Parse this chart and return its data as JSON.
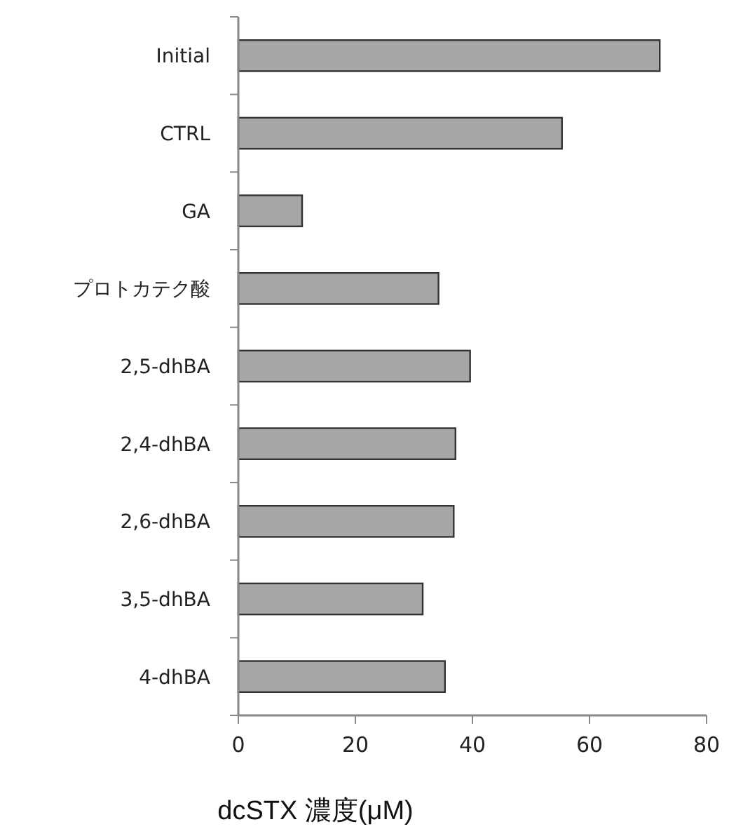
{
  "chart_data": {
    "type": "bar",
    "orientation": "horizontal",
    "xlabel": "dcSTX 濃度(μM)",
    "categories": [
      "Initial",
      "CTRL",
      "GA",
      "プロトカテク酸",
      "2,5-dhBA",
      "2,4-dhBA",
      "2,6-dhBA",
      "3,5-dhBA",
      "4-dhBA"
    ],
    "values": [
      72,
      55.3,
      10.9,
      34.2,
      39.6,
      37.1,
      36.8,
      31.5,
      35.3
    ],
    "color": "#a6a6a6",
    "xlim": [
      0,
      80
    ],
    "xticks": [
      0,
      20,
      40,
      60,
      80
    ]
  }
}
